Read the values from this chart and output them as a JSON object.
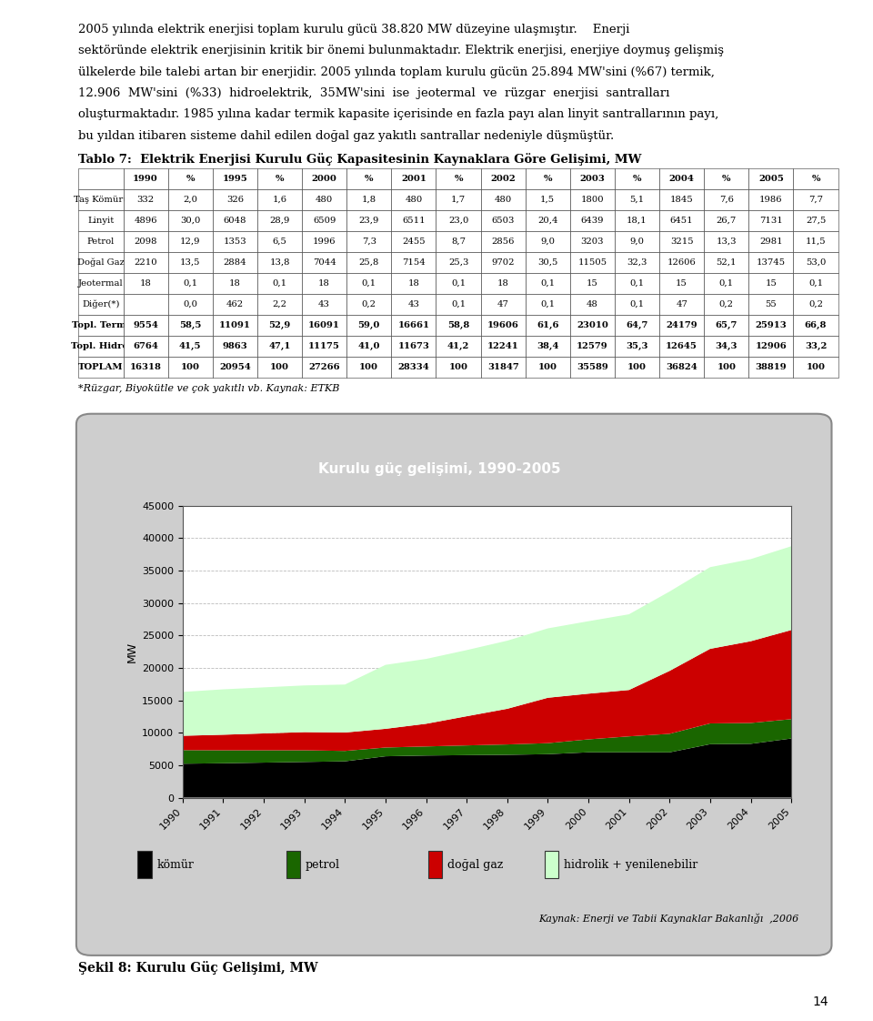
{
  "title": "Kurulu güç gelişimi, 1990-2005",
  "ylabel": "MW",
  "source_text": "Kaynak: Enerji ve Tabii Kaynaklar Bakanlığı  ,2006",
  "caption": "Şekil 8: Kurulu Güç Gelişimi, MW",
  "table_note": "*Rüzgar, Biyokütle ve çok yakıtlı vb. Kaynak: ETKB",
  "years": [
    1990,
    1991,
    1992,
    1993,
    1994,
    1995,
    1996,
    1997,
    1998,
    1999,
    2000,
    2001,
    2002,
    2003,
    2004,
    2005
  ],
  "komur": [
    5228,
    5300,
    5400,
    5500,
    5600,
    6374,
    6490,
    6550,
    6600,
    6700,
    6989,
    6991,
    6983,
    8239,
    8296,
    9117
  ],
  "petrol": [
    2098,
    2000,
    1900,
    1800,
    1600,
    1353,
    1400,
    1500,
    1600,
    1700,
    1996,
    2455,
    2856,
    3203,
    3215,
    2981
  ],
  "dogalgaz": [
    2210,
    2400,
    2600,
    2800,
    2840,
    2884,
    3500,
    4500,
    5500,
    7000,
    7044,
    7154,
    9702,
    11505,
    12606,
    13745
  ],
  "hidrolik": [
    6764,
    7000,
    7100,
    7200,
    7400,
    9863,
    10000,
    10200,
    10500,
    10700,
    11175,
    11673,
    12241,
    12594,
    12660,
    12921
  ],
  "colors": {
    "komur": "#000000",
    "petrol": "#1a6600",
    "dogalgaz": "#cc0000",
    "hidrolik": "#ccffcc"
  },
  "legend_labels": [
    "kömür",
    "petrol",
    "doğal gaz",
    "hidrolik + yenilenebilir"
  ],
  "ylim": [
    0,
    45000
  ],
  "yticks": [
    0,
    5000,
    10000,
    15000,
    20000,
    25000,
    30000,
    35000,
    40000,
    45000
  ],
  "background_outer": "#b0b0b0",
  "background_inner": "#cecece",
  "plot_bg": "#ffffff",
  "title_bg": "#333333",
  "title_color": "#ffffff",
  "title_fontsize": 12,
  "axis_fontsize": 8,
  "legend_fontsize": 9,
  "source_fontsize": 8,
  "page_number": "14",
  "text_block": "2005 yılında elektrik enerjisi toplam kurulu gücü 38.820 MW düzeyine ulaşmıştır.    Enerji\nse ktöründe elektrik enerjisinin kritik bir önemi bulunmaktadır. Elektrik enerjisi, enerjiye doymuş gelişmiş\nülkelerde bile talebi artan bir enerjidir. 2005 yılında toplam kurulu gücün 25.894 MW'sini (%67) termik,\n12.906  MW'sini  (%33)  hidroelektrik,  35MW's ini  ise  jeotermal  ve  rüzgar  enerjisi  santralları\noluşturmaktadır. 1985 yılına kadar termik kapasite içerisinde en fazla payı alan linyit santrallarının payı,\nbu yıldan itibaren sisteme dahil edilen doğal gaz yakıtlı santrallar nedeniyle düşmüştür.",
  "table_title": "Tablo 7:  Elektrik Enerjisi Kurulu Güç Kapasitesinin Kaynaklara Göre Gelişimi, MW",
  "table_data": {
    "headers": [
      "",
      "1990",
      "%",
      "1995",
      "%",
      "2000",
      "%",
      "2001",
      "%",
      "2002",
      "%",
      "2003",
      "%",
      "2004",
      "%",
      "2005",
      "%"
    ],
    "rows": [
      [
        "Taş Kömürü",
        "332",
        "2,0",
        "326",
        "1,6",
        "480",
        "1,8",
        "480",
        "1,7",
        "480",
        "1,5",
        "1800",
        "5,1",
        "1845",
        "7,6",
        "1986",
        "7,7"
      ],
      [
        "Linyit",
        "4896",
        "30,0",
        "6048",
        "28,9",
        "6509",
        "23,9",
        "6511",
        "23,0",
        "6503",
        "20,4",
        "6439",
        "18,1",
        "6451",
        "26,7",
        "7131",
        "27,5"
      ],
      [
        "Petrol",
        "2098",
        "12,9",
        "1353",
        "6,5",
        "1996",
        "7,3",
        "2455",
        "8,7",
        "2856",
        "9,0",
        "3203",
        "9,0",
        "3215",
        "13,3",
        "2981",
        "11,5"
      ],
      [
        "Doğal Gaz",
        "2210",
        "13,5",
        "2884",
        "13,8",
        "7044",
        "25,8",
        "7154",
        "25,3",
        "9702",
        "30,5",
        "11505",
        "32,3",
        "12606",
        "52,1",
        "13745",
        "53,0"
      ],
      [
        "Jeotermal",
        "18",
        "0,1",
        "18",
        "0,1",
        "18",
        "0,1",
        "18",
        "0,1",
        "18",
        "0,1",
        "15",
        "0,1",
        "15",
        "0,1",
        "15",
        "0,1"
      ],
      [
        "Diğer(*)",
        "",
        "0,0",
        "462",
        "2,2",
        "43",
        "0,2",
        "43",
        "0,1",
        "47",
        "0,1",
        "48",
        "0,1",
        "47",
        "0,2",
        "55",
        "0,2"
      ],
      [
        "Topl. Term.",
        "9554",
        "58,5",
        "11091",
        "52,9",
        "16091",
        "59,0",
        "16661",
        "58,8",
        "19606",
        "61,6",
        "23010",
        "64,7",
        "24179",
        "65,7",
        "25913",
        "66,8"
      ],
      [
        "Topl. Hidro.",
        "6764",
        "41,5",
        "9863",
        "47,1",
        "11175",
        "41,0",
        "11673",
        "41,2",
        "12241",
        "38,4",
        "12579",
        "35,3",
        "12645",
        "34,3",
        "12906",
        "33,2"
      ],
      [
        "TOPLAM",
        "16318",
        "100",
        "20954",
        "100",
        "27266",
        "100",
        "28334",
        "100",
        "31847",
        "100",
        "35589",
        "100",
        "36824",
        "100",
        "38819",
        "100"
      ]
    ]
  }
}
